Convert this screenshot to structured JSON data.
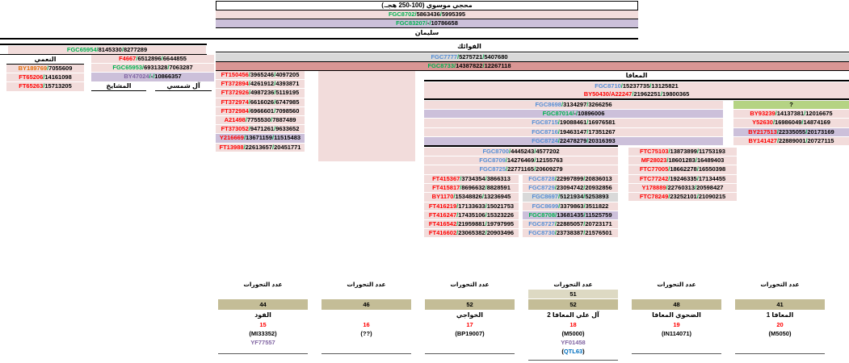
{
  "title": "محجي موسوي (100-250 هجـ.)",
  "labels": {
    "suleiman": "سليمان",
    "naami": "النعمي",
    "mashayikh": "المشايخ",
    "shamsi": "آل شمسي",
    "fawaik": "الفوائك",
    "maafa": "المعافا"
  },
  "colors": {
    "pink_bg": "#f2dcdb",
    "purple_bg": "#ccc0da",
    "gray_bg": "#d9d9d9",
    "rose_bg": "#d99694",
    "green_bg": "#b5d383",
    "tan_bar": "#c4bd97",
    "light_tan_bar": "#ddd9c3",
    "id_green": "#00b050",
    "id_red": "#ff0000",
    "id_blue": "#558ed5",
    "id_purple": "#8064a2",
    "id_orange": "#e36c0a",
    "extra_blue": "#0070c0"
  },
  "top": {
    "rows": [
      {
        "id": "FGC8702",
        "c": "green",
        "nums": [
          "5863436",
          "5995395"
        ],
        "bg": "pink"
      },
      {
        "id": "FGC83207",
        "c": "green",
        "nums": [
          "-",
          "10786658"
        ],
        "bg": "purple"
      }
    ]
  },
  "left": {
    "bar_rows": [
      {
        "id": "FGC65954",
        "c": "green",
        "nums": [
          "8145330",
          "8277289"
        ],
        "bg": "pink"
      }
    ],
    "naami_rows": [
      {
        "id": "BY189769",
        "c": "orange",
        "nums": [
          "7055609"
        ],
        "bg": "pink"
      },
      {
        "id": "FT65206",
        "c": "red",
        "nums": [
          "14161098"
        ],
        "bg": "pink"
      },
      {
        "id": "FT65263",
        "c": "red",
        "nums": [
          "15713205"
        ],
        "bg": "pink"
      }
    ],
    "branch_rows": [
      {
        "id": "F4667",
        "c": "red",
        "nums": [
          "6512896",
          "6644855"
        ],
        "bg": "pink"
      },
      {
        "id": "FGC65953",
        "c": "green",
        "nums": [
          "6931328",
          "7063287"
        ],
        "bg": "pink"
      },
      {
        "id": "BY47024",
        "c": "purple",
        "nums": [
          "-",
          "10866357"
        ],
        "bg": "purple"
      }
    ]
  },
  "fawaik": {
    "bars": [
      {
        "id": "FGC7777",
        "c": "blue",
        "nums": [
          "5275721",
          "5407680"
        ],
        "bg": "gray"
      },
      {
        "id": "FGC8733",
        "c": "green",
        "nums": [
          "14387822",
          "12267118"
        ],
        "bg": "rose"
      }
    ],
    "list": [
      {
        "id": "FT150456",
        "c": "red",
        "nums": [
          "3965246",
          "4097205"
        ],
        "bg": "pink"
      },
      {
        "id": "FT372894",
        "c": "red",
        "nums": [
          "4261912",
          "4393871"
        ],
        "bg": "pink"
      },
      {
        "id": "FT372926",
        "c": "red",
        "nums": [
          "4987236",
          "5119195"
        ],
        "bg": "pink"
      },
      {
        "id": "FT372974",
        "c": "red",
        "nums": [
          "6616026",
          "6747985"
        ],
        "bg": "pink"
      },
      {
        "id": "FT372984",
        "c": "red",
        "nums": [
          "6966601",
          "7098560"
        ],
        "bg": "pink"
      },
      {
        "id": "A21498",
        "c": "red",
        "nums": [
          "7755530",
          "7887489"
        ],
        "bg": "pink"
      },
      {
        "id": "FT373052",
        "c": "red",
        "nums": [
          "9471261",
          "9633652"
        ],
        "bg": "pink"
      },
      {
        "id": "Y216669",
        "c": "red",
        "nums": [
          "13671159",
          "11515483"
        ],
        "bg": "purple"
      },
      {
        "id": "FT13988",
        "c": "red",
        "nums": [
          "22613657",
          "20451771"
        ],
        "bg": "pink"
      }
    ]
  },
  "maafa": {
    "top_rows": [
      {
        "id": "FGC8710",
        "c": "blue",
        "nums": [
          "15237735",
          "13125821"
        ],
        "bg": "pink"
      },
      {
        "id": "BY50430",
        "c": "red",
        "id2": "A22247",
        "c2": "red",
        "nums": [
          "21962251",
          "19800365"
        ],
        "bg": "pink"
      }
    ],
    "mid": [
      {
        "id": "FGC8698",
        "c": "blue",
        "nums": [
          "3134297",
          "3266256"
        ],
        "bg": "pink"
      },
      {
        "id": "FGC87014",
        "c": "green",
        "nums": [
          "-",
          "10896006"
        ],
        "bg": "purple"
      },
      {
        "id": "FGC8715",
        "c": "blue",
        "nums": [
          "19088461",
          "16976581"
        ],
        "bg": "pink"
      },
      {
        "id": "FGC8716",
        "c": "blue",
        "nums": [
          "19463147",
          "17351267"
        ],
        "bg": "pink"
      },
      {
        "id": "FGC8724",
        "c": "blue",
        "nums": [
          "22478279",
          "20316393"
        ],
        "bg": "purple"
      }
    ],
    "q_rows": [
      {
        "id": "?",
        "c": "black",
        "nums": [],
        "bg": "green"
      },
      {
        "id": "BY93239",
        "c": "red",
        "nums": [
          "14137381",
          "12016675"
        ],
        "bg": "pink"
      },
      {
        "id": "Y52630",
        "c": "red",
        "nums": [
          "16986049",
          "14874169"
        ],
        "bg": "pink"
      },
      {
        "id": "BY217513",
        "c": "red",
        "nums": [
          "22335055",
          "20173169"
        ],
        "bg": "purple"
      },
      {
        "id": "BY141427",
        "c": "red",
        "nums": [
          "22889001",
          "20727115"
        ],
        "bg": "pink"
      }
    ],
    "block2": [
      {
        "id": "FGC8700",
        "c": "blue",
        "nums": [
          "4445243",
          "4577202"
        ],
        "bg": "pink"
      },
      {
        "id": "FGC8709",
        "c": "blue",
        "nums": [
          "14276469",
          "12155763"
        ],
        "bg": "pink"
      },
      {
        "id": "FGC8725",
        "c": "blue",
        "nums": [
          "22771165",
          "20609279"
        ],
        "bg": "pink"
      }
    ],
    "list_a": [
      {
        "id": "FT415367",
        "c": "red",
        "nums": [
          "3734354",
          "3866313"
        ],
        "bg": "pink"
      },
      {
        "id": "FT415817",
        "c": "red",
        "nums": [
          "8696632",
          "8828591"
        ],
        "bg": "pink"
      },
      {
        "id": "BY1170",
        "c": "red",
        "nums": [
          "15348826",
          "13236945"
        ],
        "bg": "pink"
      },
      {
        "id": "FT416219",
        "c": "red",
        "nums": [
          "17133633",
          "15021753"
        ],
        "bg": "pink"
      },
      {
        "id": "FT416247",
        "c": "red",
        "nums": [
          "17435106",
          "15323226"
        ],
        "bg": "pink"
      },
      {
        "id": "FT416542",
        "c": "red",
        "nums": [
          "21959881",
          "19797995"
        ],
        "bg": "pink"
      },
      {
        "id": "FT416602",
        "c": "red",
        "nums": [
          "23065382",
          "20903496"
        ],
        "bg": "pink"
      }
    ],
    "list_b": [
      {
        "id": "FGC8728",
        "c": "blue",
        "nums": [
          "22997899",
          "20836013"
        ],
        "bg": "pink"
      },
      {
        "id": "FGC8729",
        "c": "blue",
        "nums": [
          "23094742",
          "20932856"
        ],
        "bg": "pink"
      },
      {
        "id": "FGC8697",
        "c": "blue",
        "nums": [
          "5121934",
          "5253893"
        ],
        "bg": "gray"
      },
      {
        "id": "FGC8699",
        "c": "blue",
        "nums": [
          "3379863",
          "3511822"
        ],
        "bg": "pink"
      },
      {
        "id": "FGC8708",
        "c": "green",
        "nums": [
          "13681435",
          "11525759"
        ],
        "bg": "purple"
      },
      {
        "id": "FGC8727",
        "c": "blue",
        "nums": [
          "22885057",
          "20723171"
        ],
        "bg": "pink"
      },
      {
        "id": "FGC8730",
        "c": "blue",
        "nums": [
          "23738387",
          "21576501"
        ],
        "bg": "pink"
      }
    ],
    "ftc_list": [
      {
        "id": "FTC75103",
        "c": "red",
        "nums": [
          "13873899",
          "11753193"
        ],
        "bg": "pink"
      },
      {
        "id": "MF28023",
        "c": "red",
        "nums": [
          "18601283",
          "16489403"
        ],
        "bg": "pink"
      },
      {
        "id": "FTC77005",
        "c": "red",
        "nums": [
          "18662278",
          "16550398"
        ],
        "bg": "pink"
      },
      {
        "id": "FTC77242",
        "c": "red",
        "nums": [
          "19246335",
          "17134455"
        ],
        "bg": "pink"
      },
      {
        "id": "Y178889",
        "c": "red",
        "nums": [
          "22760313",
          "20598427"
        ],
        "bg": "pink"
      },
      {
        "id": "FTC78249",
        "c": "red",
        "nums": [
          "23252101",
          "21090215"
        ],
        "bg": "pink"
      }
    ]
  },
  "bottom": {
    "header": "عدد التحورات",
    "columns": [
      {
        "bar": "44",
        "name": "الفود",
        "num": "15",
        "code": "(MI33352)",
        "yf": "YF77557"
      },
      {
        "bar": "46",
        "name": "",
        "num": "16",
        "code": "(??)"
      },
      {
        "bar": "52",
        "name": "الخواجي",
        "num": "17",
        "code": "(BP19007)"
      },
      {
        "bar_top": "51",
        "bar": "52",
        "name": "آل علي المعافا 2",
        "num": "18",
        "code": "(M5000)",
        "yf": "YF01458",
        "extra": "QTL63"
      },
      {
        "bar": "48",
        "name": "الضحوي المعافا",
        "num": "19",
        "code": "(IN114071)"
      },
      {
        "bar": "41",
        "name": "المعافا 1",
        "num": "20",
        "code": "(M5050)"
      }
    ]
  }
}
